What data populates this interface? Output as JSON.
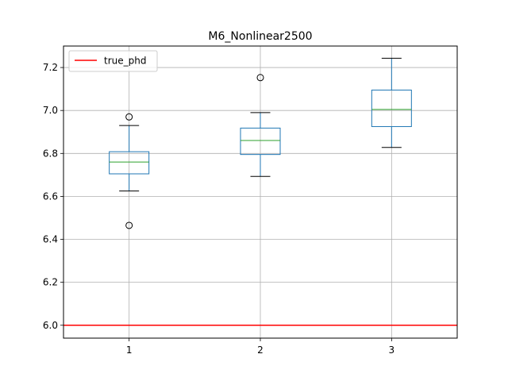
{
  "chart_data": {
    "type": "box",
    "title": "M6_Nonlinear2500",
    "xlabel": "",
    "ylabel": "",
    "categories": [
      "1",
      "2",
      "3"
    ],
    "ylim": [
      5.94,
      7.3
    ],
    "yticks": [
      6.0,
      6.2,
      6.4,
      6.6,
      6.8,
      7.0,
      7.2
    ],
    "ytick_labels": [
      "6.0",
      "6.2",
      "6.4",
      "6.6",
      "6.8",
      "7.0",
      "7.2"
    ],
    "grid": true,
    "legend": {
      "position": "top-left",
      "entries": [
        "true_phd"
      ]
    },
    "boxes": [
      {
        "category": "1",
        "whisker_low": 6.625,
        "q1": 6.705,
        "median": 6.76,
        "q3": 6.808,
        "whisker_high": 6.93,
        "fliers": [
          6.97,
          6.465
        ]
      },
      {
        "category": "2",
        "whisker_low": 6.693,
        "q1": 6.795,
        "median": 6.86,
        "q3": 6.918,
        "whisker_high": 6.99,
        "fliers": [
          7.153
        ]
      },
      {
        "category": "3",
        "whisker_low": 6.828,
        "q1": 6.925,
        "median": 7.005,
        "q3": 7.095,
        "whisker_high": 7.243,
        "fliers": []
      }
    ],
    "reference_lines": [
      {
        "name": "true_phd",
        "y": 6.0
      }
    ],
    "colors": {
      "box": "#1f77b4",
      "median": "#2ca02c",
      "reference": "#ff0000",
      "grid": "#b0b0b0"
    }
  }
}
